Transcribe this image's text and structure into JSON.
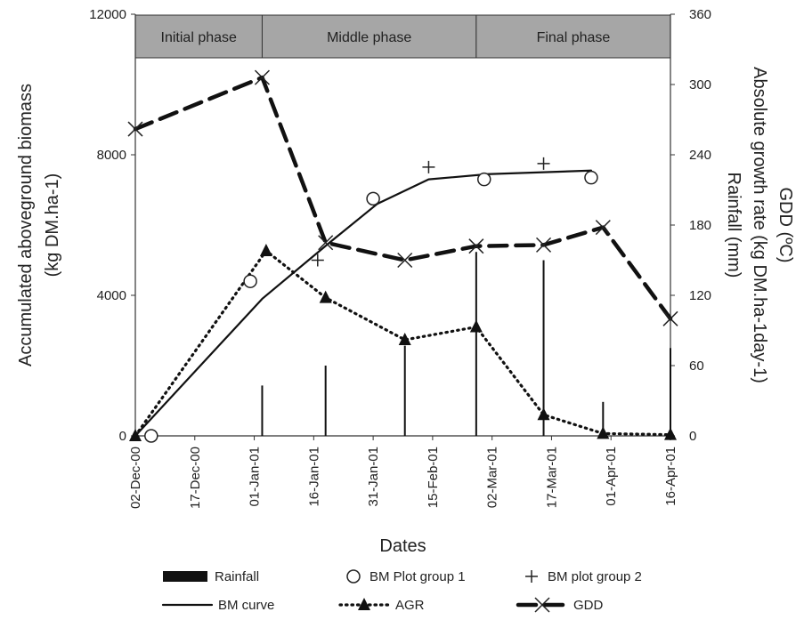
{
  "chart_data": {
    "type": "line",
    "xlabel": "Dates",
    "ylabel_left": [
      "Accumulated aboveground biomass",
      "(kg DM.ha-1)"
    ],
    "ylabel_right": [
      "Rainfall (mm)",
      "Absolute growth rate (kg DM.ha-1day-1)",
      "GDD (ºC)"
    ],
    "x_ticks": [
      "02-Dec-00",
      "17-Dec-00",
      "01-Jan-01",
      "16-Jan-01",
      "31-Jan-01",
      "15-Feb-01",
      "02-Mar-01",
      "17-Mar-01",
      "01-Apr-01",
      "16-Apr-01"
    ],
    "x_range": [
      "2000-12-02",
      "2001-04-16"
    ],
    "ylim_left": [
      0,
      12000
    ],
    "left_ticks": [
      "0",
      "4000",
      "8000",
      "12000"
    ],
    "left_tick_values": [
      0,
      4000,
      8000,
      12000
    ],
    "ylim_right": [
      0,
      360
    ],
    "right_ticks": [
      "0",
      "60",
      "120",
      "180",
      "240",
      "300",
      "360"
    ],
    "right_tick_values": [
      0,
      60,
      120,
      180,
      240,
      300,
      360
    ],
    "phases": [
      {
        "label": "Initial phase",
        "start": "2000-12-02",
        "end": "2001-01-03"
      },
      {
        "label": "Middle phase",
        "start": "2001-01-03",
        "end": "2001-02-26"
      },
      {
        "label": "Final phase",
        "start": "2001-02-26",
        "end": "2001-04-16"
      }
    ],
    "series": [
      {
        "name": "Rainfall",
        "kind": "bars",
        "axis": "right",
        "color": "#111111",
        "points": [
          {
            "x": "2001-01-03",
            "y": 43
          },
          {
            "x": "2001-01-19",
            "y": 60
          },
          {
            "x": "2001-02-08",
            "y": 77
          },
          {
            "x": "2001-02-26",
            "y": 157
          },
          {
            "x": "2001-03-15",
            "y": 150
          },
          {
            "x": "2001-03-30",
            "y": 29
          },
          {
            "x": "2001-04-16",
            "y": 75
          }
        ]
      },
      {
        "name": "BM Plot group 1",
        "kind": "markers",
        "marker": "circle",
        "axis": "left",
        "color": "#222222",
        "points": [
          {
            "x": "2000-12-06",
            "y": 0
          },
          {
            "x": "2000-12-31",
            "y": 4400
          },
          {
            "x": "2001-01-31",
            "y": 6750
          },
          {
            "x": "2001-02-28",
            "y": 7300
          },
          {
            "x": "2001-03-27",
            "y": 7350
          }
        ]
      },
      {
        "name": "BM plot group 2",
        "kind": "markers",
        "marker": "plus",
        "axis": "left",
        "color": "#222222",
        "points": [
          {
            "x": "2001-01-17",
            "y": 5000
          },
          {
            "x": "2001-02-14",
            "y": 7650
          },
          {
            "x": "2001-03-15",
            "y": 7750
          }
        ]
      },
      {
        "name": "BM curve",
        "kind": "line",
        "dash": "solid",
        "axis": "left",
        "color": "#111111",
        "points": [
          {
            "x": "2000-12-02",
            "y": 0
          },
          {
            "x": "2001-01-03",
            "y": 3900
          },
          {
            "x": "2001-01-20",
            "y": 5500
          },
          {
            "x": "2001-02-01",
            "y": 6600
          },
          {
            "x": "2001-02-14",
            "y": 7300
          },
          {
            "x": "2001-03-01",
            "y": 7450
          },
          {
            "x": "2001-03-27",
            "y": 7550
          }
        ]
      },
      {
        "name": "AGR",
        "kind": "line",
        "dash": "dotted",
        "marker": "triangle",
        "axis": "right",
        "color": "#111111",
        "points": [
          {
            "x": "2000-12-02",
            "y": 0
          },
          {
            "x": "2001-01-04",
            "y": 158
          },
          {
            "x": "2001-01-19",
            "y": 118
          },
          {
            "x": "2001-02-08",
            "y": 82
          },
          {
            "x": "2001-02-26",
            "y": 93
          },
          {
            "x": "2001-03-15",
            "y": 18
          },
          {
            "x": "2001-03-30",
            "y": 2
          },
          {
            "x": "2001-04-16",
            "y": 1
          }
        ]
      },
      {
        "name": "GDD",
        "kind": "line",
        "dash": "dashed",
        "marker": "x",
        "axis": "right",
        "color": "#111111",
        "points": [
          {
            "x": "2000-12-02",
            "y": 262
          },
          {
            "x": "2001-01-03",
            "y": 306
          },
          {
            "x": "2001-01-19",
            "y": 165
          },
          {
            "x": "2001-02-08",
            "y": 150
          },
          {
            "x": "2001-02-26",
            "y": 162
          },
          {
            "x": "2001-03-15",
            "y": 163
          },
          {
            "x": "2001-03-30",
            "y": 178
          },
          {
            "x": "2001-04-16",
            "y": 100
          }
        ]
      }
    ],
    "legend": {
      "placement": "bottom",
      "rows": [
        [
          "Rainfall",
          "BM Plot group 1",
          "BM plot group 2"
        ],
        [
          "BM curve",
          "AGR",
          "GDD"
        ]
      ]
    },
    "grid": false
  }
}
